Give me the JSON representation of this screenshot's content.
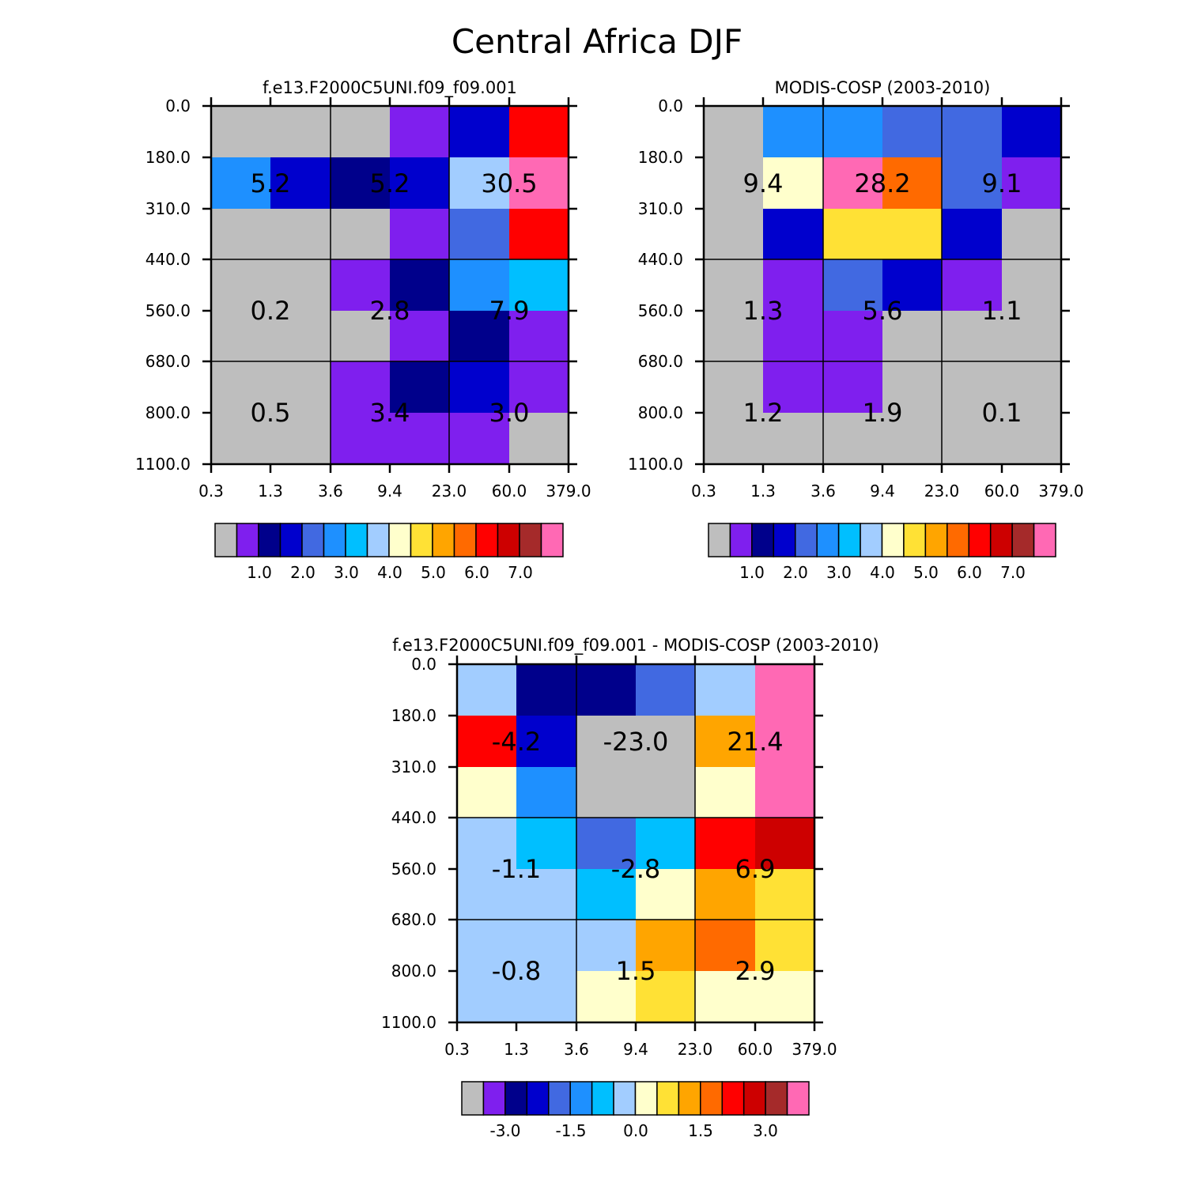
{
  "title": "Central Africa DJF",
  "chart_data": [
    {
      "type": "heatmap",
      "title": "f.e13.F2000C5UNI.f09_f09.001",
      "x_tick_labels": [
        "0.3",
        "1.3",
        "3.6",
        "9.4",
        "23.0",
        "60.0",
        "379.0"
      ],
      "y_tick_labels": [
        "0.0",
        "180.0",
        "310.0",
        "440.0",
        "560.0",
        "680.0",
        "800.0",
        "1100.0"
      ],
      "cell_colors": [
        [
          "#BEBEBE",
          "#BEBEBE",
          "#BEBEBE",
          "#7F1FEE",
          "#0000CD",
          "#FF0000"
        ],
        [
          "#1E90FF",
          "#0000CD",
          "#00008B",
          "#0000CD",
          "#A2CDFF",
          "#FF69B4"
        ],
        [
          "#BEBEBE",
          "#BEBEBE",
          "#BEBEBE",
          "#7F1FEE",
          "#4169E1",
          "#FF0000"
        ],
        [
          "#BEBEBE",
          "#BEBEBE",
          "#7F1FEE",
          "#00008B",
          "#1E90FF",
          "#00BFFF"
        ],
        [
          "#BEBEBE",
          "#BEBEBE",
          "#BEBEBE",
          "#7F1FEE",
          "#00008B",
          "#7F1FEE"
        ],
        [
          "#BEBEBE",
          "#BEBEBE",
          "#7F1FEE",
          "#00008B",
          "#0000CD",
          "#7F1FEE"
        ],
        [
          "#BEBEBE",
          "#BEBEBE",
          "#7F1FEE",
          "#7F1FEE",
          "#7F1FEE",
          "#BEBEBE"
        ]
      ],
      "block_totals": [
        [
          "5.2",
          "5.2",
          "30.5"
        ],
        [
          "0.2",
          "2.8",
          "7.9"
        ],
        [
          "0.5",
          "3.4",
          "3.0"
        ]
      ],
      "colorbar_colors": [
        "#BEBEBE",
        "#7F1FEE",
        "#00008B",
        "#0000CD",
        "#4169E1",
        "#1E90FF",
        "#00BFFF",
        "#A2CDFF",
        "#FFFFCC",
        "#FFE135",
        "#FFA500",
        "#FF6A00",
        "#FF0000",
        "#CD0000",
        "#A52A2A",
        "#FF69B4"
      ],
      "colorbar_labels": [
        "1.0",
        "2.0",
        "3.0",
        "4.0",
        "5.0",
        "6.0",
        "7.0"
      ]
    },
    {
      "type": "heatmap",
      "title": "MODIS-COSP (2003-2010)",
      "x_tick_labels": [
        "0.3",
        "1.3",
        "3.6",
        "9.4",
        "23.0",
        "60.0",
        "379.0"
      ],
      "y_tick_labels": [
        "0.0",
        "180.0",
        "310.0",
        "440.0",
        "560.0",
        "680.0",
        "800.0",
        "1100.0"
      ],
      "cell_colors": [
        [
          "#BEBEBE",
          "#1E90FF",
          "#1E90FF",
          "#4169E1",
          "#4169E1",
          "#0000CD"
        ],
        [
          "#BEBEBE",
          "#FFFFCC",
          "#FF69B4",
          "#FF6A00",
          "#4169E1",
          "#7F1FEE"
        ],
        [
          "#BEBEBE",
          "#0000CD",
          "#FFE135",
          "#FFE135",
          "#0000CD",
          "#BEBEBE"
        ],
        [
          "#BEBEBE",
          "#7F1FEE",
          "#4169E1",
          "#0000CD",
          "#7F1FEE",
          "#BEBEBE"
        ],
        [
          "#BEBEBE",
          "#7F1FEE",
          "#7F1FEE",
          "#BEBEBE",
          "#BEBEBE",
          "#BEBEBE"
        ],
        [
          "#BEBEBE",
          "#7F1FEE",
          "#7F1FEE",
          "#BEBEBE",
          "#BEBEBE",
          "#BEBEBE"
        ],
        [
          "#BEBEBE",
          "#BEBEBE",
          "#BEBEBE",
          "#BEBEBE",
          "#BEBEBE",
          "#BEBEBE"
        ]
      ],
      "block_totals": [
        [
          "9.4",
          "28.2",
          "9.1"
        ],
        [
          "1.3",
          "5.6",
          "1.1"
        ],
        [
          "1.2",
          "1.9",
          "0.1"
        ]
      ],
      "colorbar_colors": [
        "#BEBEBE",
        "#7F1FEE",
        "#00008B",
        "#0000CD",
        "#4169E1",
        "#1E90FF",
        "#00BFFF",
        "#A2CDFF",
        "#FFFFCC",
        "#FFE135",
        "#FFA500",
        "#FF6A00",
        "#FF0000",
        "#CD0000",
        "#A52A2A",
        "#FF69B4"
      ],
      "colorbar_labels": [
        "1.0",
        "2.0",
        "3.0",
        "4.0",
        "5.0",
        "6.0",
        "7.0"
      ]
    },
    {
      "type": "heatmap",
      "title": "f.e13.F2000C5UNI.f09_f09.001 - MODIS-COSP (2003-2010)",
      "x_tick_labels": [
        "0.3",
        "1.3",
        "3.6",
        "9.4",
        "23.0",
        "60.0",
        "379.0"
      ],
      "y_tick_labels": [
        "0.0",
        "180.0",
        "310.0",
        "440.0",
        "560.0",
        "680.0",
        "800.0",
        "1100.0"
      ],
      "cell_colors": [
        [
          "#A2CDFF",
          "#00008B",
          "#00008B",
          "#4169E1",
          "#A2CDFF",
          "#FF69B4"
        ],
        [
          "#FF0000",
          "#0000CD",
          "#BEBEBE",
          "#BEBEBE",
          "#FFA500",
          "#FF69B4"
        ],
        [
          "#FFFFCC",
          "#1E90FF",
          "#BEBEBE",
          "#BEBEBE",
          "#FFFFCC",
          "#FF69B4"
        ],
        [
          "#A2CDFF",
          "#00BFFF",
          "#4169E1",
          "#00BFFF",
          "#FF0000",
          "#CD0000"
        ],
        [
          "#A2CDFF",
          "#A2CDFF",
          "#00BFFF",
          "#FFFFCC",
          "#FFA500",
          "#FFE135"
        ],
        [
          "#A2CDFF",
          "#A2CDFF",
          "#A2CDFF",
          "#FFA500",
          "#FF6A00",
          "#FFE135"
        ],
        [
          "#A2CDFF",
          "#A2CDFF",
          "#FFFFCC",
          "#FFE135",
          "#FFFFCC",
          "#FFFFCC"
        ]
      ],
      "block_totals": [
        [
          "-4.2",
          "-23.0",
          "21.4"
        ],
        [
          "-1.1",
          "-2.8",
          "6.9"
        ],
        [
          "-0.8",
          "1.5",
          "2.9"
        ]
      ],
      "colorbar_colors": [
        "#BEBEBE",
        "#7F1FEE",
        "#00008B",
        "#0000CD",
        "#4169E1",
        "#1E90FF",
        "#00BFFF",
        "#A2CDFF",
        "#FFFFCC",
        "#FFE135",
        "#FFA500",
        "#FF6A00",
        "#FF0000",
        "#CD0000",
        "#A52A2A",
        "#FF69B4"
      ],
      "colorbar_labels": [
        "-3.0",
        "-1.5",
        "0.0",
        "1.5",
        "3.0"
      ]
    }
  ]
}
